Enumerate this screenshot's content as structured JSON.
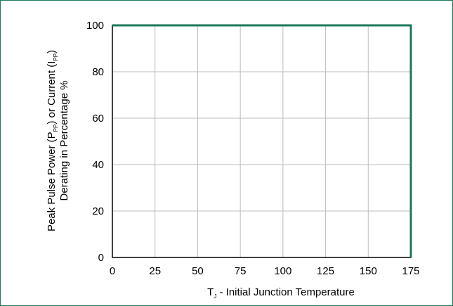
{
  "chart_data": {
    "type": "line",
    "title": "",
    "xlabel": {
      "symbol": "T",
      "subscript": "J",
      "text": " - Initial Junction Temperature"
    },
    "ylabel": {
      "line1_parts": [
        "Peak Pulse Power (P",
        "PP",
        ") or Current (I",
        "PP",
        ")"
      ],
      "line2": "Derating in Percentage %"
    },
    "xlim": [
      0,
      175
    ],
    "ylim": [
      0,
      100
    ],
    "x_ticks": [
      0,
      25,
      50,
      75,
      100,
      125,
      150,
      175
    ],
    "y_ticks": [
      0,
      20,
      40,
      60,
      80,
      100
    ],
    "grid": true,
    "series": [
      {
        "color": "#1a7a5a",
        "x": [
          0,
          175,
          175
        ],
        "y": [
          100,
          100,
          0
        ]
      }
    ]
  }
}
